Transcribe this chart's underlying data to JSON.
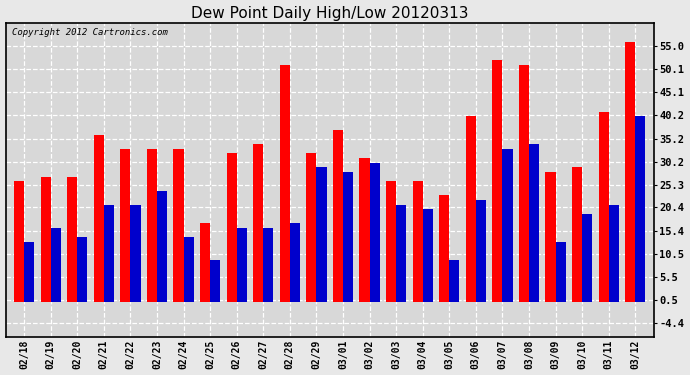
{
  "title": "Dew Point Daily High/Low 20120313",
  "copyright": "Copyright 2012 Cartronics.com",
  "dates": [
    "02/18",
    "02/19",
    "02/20",
    "02/21",
    "02/22",
    "02/23",
    "02/24",
    "02/25",
    "02/26",
    "02/27",
    "02/28",
    "02/29",
    "03/01",
    "03/02",
    "03/03",
    "03/04",
    "03/05",
    "03/06",
    "03/07",
    "03/08",
    "03/09",
    "03/10",
    "03/11",
    "03/12"
  ],
  "highs": [
    26,
    27,
    27,
    36,
    33,
    33,
    33,
    17,
    32,
    34,
    51,
    32,
    37,
    31,
    26,
    26,
    23,
    40,
    52,
    51,
    28,
    29,
    41,
    56
  ],
  "lows": [
    13,
    16,
    14,
    21,
    21,
    24,
    14,
    9,
    16,
    16,
    17,
    29,
    28,
    30,
    21,
    20,
    9,
    22,
    33,
    34,
    13,
    19,
    21,
    40
  ],
  "high_color": "#ff0000",
  "low_color": "#0000cc",
  "bg_color": "#e8e8e8",
  "plot_bg_color": "#d8d8d8",
  "grid_color": "#ffffff",
  "yticks": [
    55.0,
    50.1,
    45.1,
    40.2,
    35.2,
    30.2,
    25.3,
    20.4,
    15.4,
    10.5,
    5.5,
    0.5,
    -4.4
  ],
  "ylim": [
    -7.5,
    60
  ],
  "bar_width": 0.38,
  "figsize": [
    6.9,
    3.75
  ],
  "dpi": 100
}
